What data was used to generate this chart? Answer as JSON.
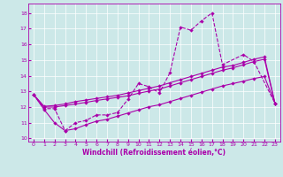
{
  "bg_color": "#cce8e8",
  "line_color": "#aa00aa",
  "xlabel": "Windchill (Refroidissement éolien,°C)",
  "xlim": [
    -0.5,
    23.5
  ],
  "ylim": [
    9.8,
    18.6
  ],
  "yticks": [
    10,
    11,
    12,
    13,
    14,
    15,
    16,
    17,
    18
  ],
  "xticks": [
    0,
    1,
    2,
    3,
    4,
    5,
    6,
    7,
    8,
    9,
    10,
    11,
    12,
    13,
    14,
    15,
    16,
    17,
    18,
    19,
    20,
    21,
    22,
    23
  ],
  "line_A_x": [
    0,
    1,
    2,
    3,
    4,
    5,
    6,
    7,
    8,
    9,
    10,
    11,
    12,
    13,
    14,
    15,
    16,
    17,
    18,
    20,
    21,
    23
  ],
  "line_A_y": [
    12.8,
    11.9,
    11.9,
    10.5,
    11.0,
    11.15,
    11.5,
    11.5,
    11.65,
    12.5,
    13.5,
    13.3,
    12.9,
    14.2,
    17.1,
    16.9,
    17.5,
    18.0,
    14.7,
    15.35,
    14.9,
    12.25
  ],
  "line_B_x": [
    0,
    1,
    2,
    3,
    4,
    5,
    6,
    7,
    8,
    9,
    10,
    11,
    12,
    13,
    14,
    15,
    16,
    17,
    18,
    19,
    20,
    21,
    22,
    23
  ],
  "line_B_y": [
    12.8,
    12.05,
    12.1,
    12.2,
    12.35,
    12.45,
    12.55,
    12.65,
    12.75,
    12.9,
    13.05,
    13.2,
    13.35,
    13.55,
    13.75,
    13.95,
    14.15,
    14.35,
    14.55,
    14.65,
    14.85,
    15.05,
    15.2,
    12.25
  ],
  "line_C_x": [
    0,
    1,
    2,
    3,
    4,
    5,
    6,
    7,
    8,
    9,
    10,
    11,
    12,
    13,
    14,
    15,
    16,
    17,
    18,
    19,
    20,
    21,
    22,
    23
  ],
  "line_C_y": [
    12.8,
    12.0,
    12.0,
    12.1,
    12.2,
    12.3,
    12.42,
    12.52,
    12.62,
    12.72,
    12.88,
    13.02,
    13.15,
    13.35,
    13.55,
    13.75,
    13.95,
    14.15,
    14.35,
    14.5,
    14.7,
    14.9,
    15.05,
    12.25
  ],
  "line_D_x": [
    0,
    1,
    2,
    3,
    4,
    5,
    6,
    7,
    8,
    9,
    10,
    11,
    12,
    13,
    14,
    15,
    16,
    17,
    18,
    19,
    20,
    21,
    22,
    23
  ],
  "line_D_y": [
    12.8,
    11.85,
    11.0,
    10.5,
    10.62,
    10.88,
    11.1,
    11.22,
    11.42,
    11.62,
    11.82,
    12.02,
    12.15,
    12.35,
    12.55,
    12.75,
    12.95,
    13.15,
    13.35,
    13.5,
    13.65,
    13.82,
    13.95,
    12.25
  ]
}
